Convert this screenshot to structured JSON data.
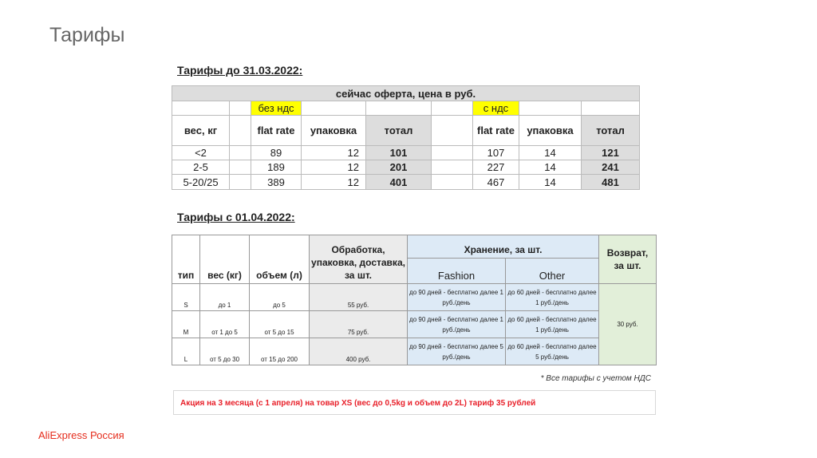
{
  "slide": {
    "title": "Тарифы",
    "brand": "AliExpress Россия"
  },
  "old": {
    "heading": "Тарифы до 31.03.2022:",
    "caption": "сейчас оферта, цена в руб.",
    "no_vat": "без ндс",
    "vat": "с ндс",
    "headers": {
      "weight": "вес, кг",
      "flat": "flat rate",
      "pack": "упаковка",
      "total": "тотал"
    },
    "rows": [
      {
        "w": "<2",
        "f1": "89",
        "p1": "12",
        "t1": "101",
        "f2": "107",
        "p2": "14",
        "t2": "121"
      },
      {
        "w": "2-5",
        "f1": "189",
        "p1": "12",
        "t1": "201",
        "f2": "227",
        "p2": "14",
        "t2": "241"
      },
      {
        "w": "5-20/25",
        "f1": "389",
        "p1": "12",
        "t1": "401",
        "f2": "467",
        "p2": "14",
        "t2": "481"
      }
    ]
  },
  "new": {
    "heading": "Тарифы с 01.04.2022:",
    "headers": {
      "type": "тип",
      "weight": "вес (кг)",
      "volume": "объем (л)",
      "processing": "Обработка, упаковка, доставка, за шт.",
      "storage": "Хранение, за шт.",
      "fashion": "Fashion",
      "other": "Other",
      "return": "Возврат, за шт."
    },
    "rows": [
      {
        "type": "S",
        "weight": "до 1",
        "volume": "до 5",
        "price": "55 руб.",
        "fashion": "до 90 дней - бесплатно далее 1 руб./день",
        "other": "до 60 дней - бесплатно далее 1 руб./день"
      },
      {
        "type": "M",
        "weight": "от 1 до 5",
        "volume": "от 5 до 15",
        "price": "75 руб.",
        "fashion": "до 90 дней - бесплатно далее 1 руб./день",
        "other": "до 60 дней - бесплатно далее 1 руб./день"
      },
      {
        "type": "L",
        "weight": "от 5 до 30",
        "volume": "от 15 до 200",
        "price": "400 руб.",
        "fashion": "до 90 дней - бесплатно далее 5 руб./день",
        "other": "до 60 дней - бесплатно далее 5 руб./день"
      }
    ],
    "return_price": "30 руб.",
    "note": "* Все тарифы с учетом НДС",
    "promo": "Акция на 3 месяца (с 1 апреля) на товар XS (вес до 0,5kg и объем до 2L) тариф 35 рублей"
  },
  "colors": {
    "brand": "#e52e1e",
    "highlight": "#ffff00",
    "storage": "#ddeaf6",
    "return": "#e2efd9",
    "promo": "#e8202a"
  }
}
